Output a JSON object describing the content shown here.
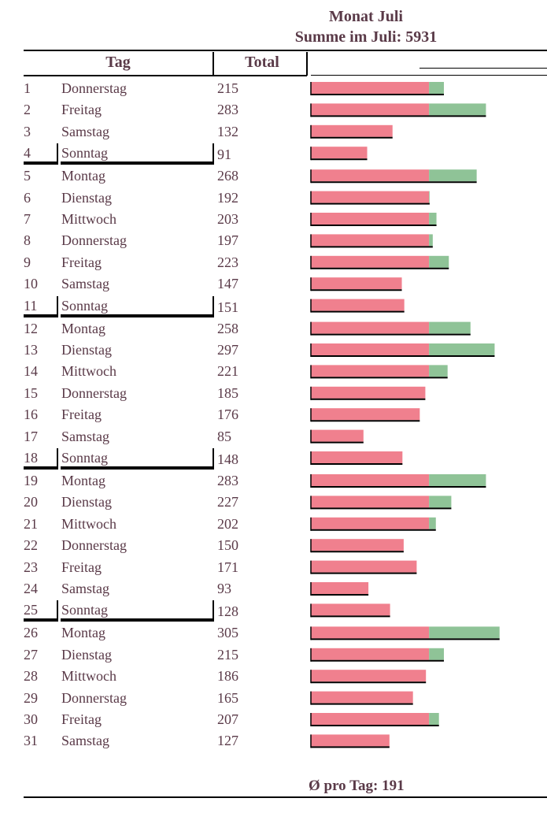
{
  "header": {
    "title": "Monat Juli",
    "sum_label": "Summe im Juli: 5931",
    "col_day": "Tag",
    "col_total": "Total"
  },
  "footer": {
    "average_label": "Ø pro Tag: 191"
  },
  "chart_data": {
    "type": "bar",
    "orientation": "horizontal",
    "title": "Monat Juli",
    "subtitle": "Summe im Juli: 5931",
    "average": 191,
    "threshold": 191,
    "colors": {
      "below": "#f0808e",
      "above": "#8fc397",
      "outline": "#000000",
      "text": "#5a3a48"
    },
    "rows": [
      {
        "day": "1",
        "weekday": "Donnerstag",
        "value": 215
      },
      {
        "day": "2",
        "weekday": "Freitag",
        "value": 283
      },
      {
        "day": "3",
        "weekday": "Samstag",
        "value": 132
      },
      {
        "day": "4",
        "weekday": "Sonntag",
        "value": 91
      },
      {
        "day": "5",
        "weekday": "Montag",
        "value": 268
      },
      {
        "day": "6",
        "weekday": "Dienstag",
        "value": 192
      },
      {
        "day": "7",
        "weekday": "Mittwoch",
        "value": 203
      },
      {
        "day": "8",
        "weekday": "Donnerstag",
        "value": 197
      },
      {
        "day": "9",
        "weekday": "Freitag",
        "value": 223
      },
      {
        "day": "10",
        "weekday": "Samstag",
        "value": 147
      },
      {
        "day": "11",
        "weekday": "Sonntag",
        "value": 151
      },
      {
        "day": "12",
        "weekday": "Montag",
        "value": 258
      },
      {
        "day": "13",
        "weekday": "Dienstag",
        "value": 297
      },
      {
        "day": "14",
        "weekday": "Mittwoch",
        "value": 221
      },
      {
        "day": "15",
        "weekday": "Donnerstag",
        "value": 185
      },
      {
        "day": "16",
        "weekday": "Freitag",
        "value": 176
      },
      {
        "day": "17",
        "weekday": "Samstag",
        "value": 85
      },
      {
        "day": "18",
        "weekday": "Sonntag",
        "value": 148
      },
      {
        "day": "19",
        "weekday": "Montag",
        "value": 283
      },
      {
        "day": "20",
        "weekday": "Dienstag",
        "value": 227
      },
      {
        "day": "21",
        "weekday": "Mittwoch",
        "value": 202
      },
      {
        "day": "22",
        "weekday": "Donnerstag",
        "value": 150
      },
      {
        "day": "23",
        "weekday": "Freitag",
        "value": 171
      },
      {
        "day": "24",
        "weekday": "Samstag",
        "value": 93
      },
      {
        "day": "25",
        "weekday": "Sonntag",
        "value": 128
      },
      {
        "day": "26",
        "weekday": "Montag",
        "value": 305
      },
      {
        "day": "27",
        "weekday": "Dienstag",
        "value": 215
      },
      {
        "day": "28",
        "weekday": "Mittwoch",
        "value": 186
      },
      {
        "day": "29",
        "weekday": "Donnerstag",
        "value": 165
      },
      {
        "day": "30",
        "weekday": "Freitag",
        "value": 207
      },
      {
        "day": "31",
        "weekday": "Samstag",
        "value": 127
      }
    ]
  }
}
